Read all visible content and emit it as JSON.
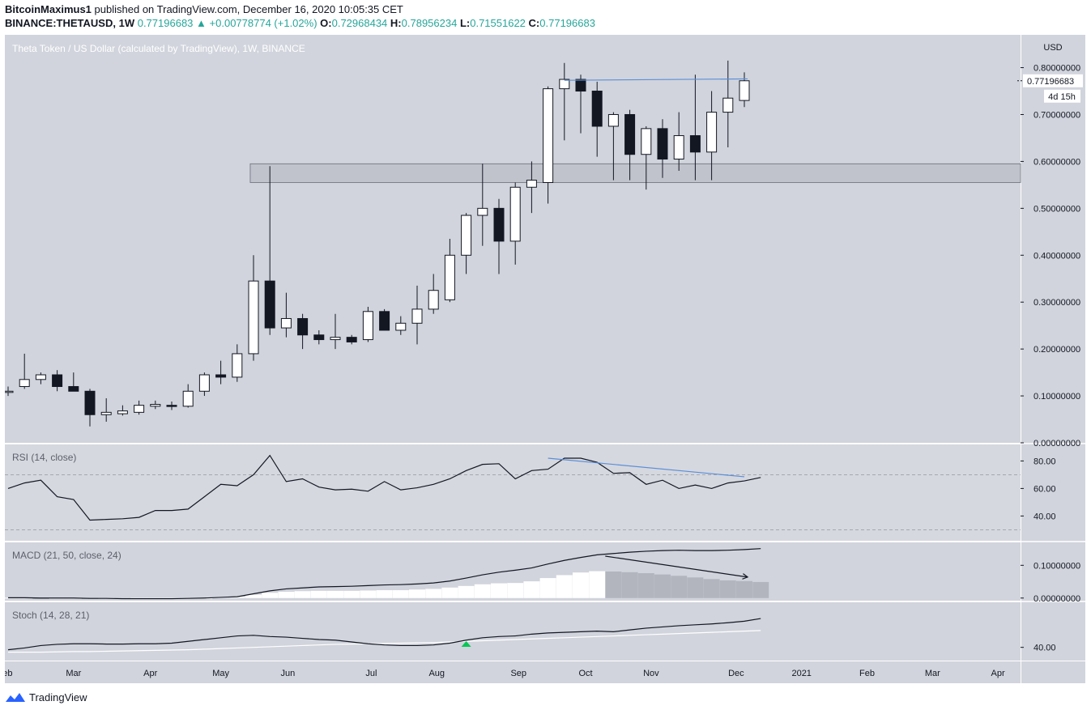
{
  "header": {
    "publisher": "BitcoinMaximus1",
    "published_text": "published on TradingView.com, December 16, 2020 10:05:35 CET",
    "symbol": "BINANCE:THETAUSD, 1W",
    "last_price": "0.77196683",
    "change": "+0.00778774 (+1.02%)",
    "o_label": "O:",
    "o_value": "0.72968434",
    "h_label": "H:",
    "h_value": "0.78956234",
    "l_label": "L:",
    "l_value": "0.71551622",
    "c_label": "C:",
    "c_value": "0.77196683",
    "up_arrow": "▲"
  },
  "footer": {
    "brand": "TradingView"
  },
  "colors": {
    "pane_bg": "#d1d4dc",
    "rsi_bg": "#d6d8df",
    "candle_up": "#ffffff",
    "candle_down": "#131722",
    "annotation": "#5b8fd8",
    "hist_up": "#ffffff",
    "hist_down": "#b2b5be",
    "stoch_signal": "#ffffff",
    "marker": "#00c853"
  },
  "chart_data": [
    {
      "type": "candlestick",
      "title": "Theta Token / US Dollar (calculated by TradingView), 1W, BINANCE",
      "ylabel": "USD",
      "ylim": [
        0,
        0.87
      ],
      "y_ticks": [
        "0.00000000",
        "0.10000000",
        "0.20000000",
        "0.30000000",
        "0.40000000",
        "0.50000000",
        "0.60000000",
        "0.70000000",
        "0.80000000"
      ],
      "last_price_label": "0.77196683",
      "countdown_label": "4d 15h",
      "x_labels": [
        "Feb",
        "Mar",
        "Apr",
        "May",
        "Jun",
        "Jul",
        "Aug",
        "Sep",
        "Oct",
        "Nov",
        "Dec",
        "2021",
        "Feb",
        "Mar",
        "Apr"
      ],
      "x_label_weeks": [
        -0.2,
        4,
        8.7,
        13,
        17.1,
        22.2,
        26.2,
        31.2,
        35.3,
        39.3,
        44.5,
        48.5,
        52.5,
        56.5,
        60.5
      ],
      "candles": [
        [
          0.11,
          0.12,
          0.1,
          0.11
        ],
        [
          0.12,
          0.19,
          0.115,
          0.135
        ],
        [
          0.135,
          0.15,
          0.125,
          0.145
        ],
        [
          0.145,
          0.155,
          0.11,
          0.12
        ],
        [
          0.12,
          0.15,
          0.11,
          0.11
        ],
        [
          0.11,
          0.115,
          0.035,
          0.06
        ],
        [
          0.06,
          0.095,
          0.045,
          0.065
        ],
        [
          0.062,
          0.08,
          0.058,
          0.068
        ],
        [
          0.065,
          0.09,
          0.06,
          0.08
        ],
        [
          0.078,
          0.09,
          0.072,
          0.082
        ],
        [
          0.08,
          0.088,
          0.07,
          0.078
        ],
        [
          0.078,
          0.125,
          0.075,
          0.11
        ],
        [
          0.11,
          0.15,
          0.1,
          0.145
        ],
        [
          0.145,
          0.175,
          0.125,
          0.14
        ],
        [
          0.14,
          0.21,
          0.13,
          0.19
        ],
        [
          0.19,
          0.4,
          0.175,
          0.345
        ],
        [
          0.345,
          0.59,
          0.23,
          0.245
        ],
        [
          0.245,
          0.32,
          0.225,
          0.265
        ],
        [
          0.265,
          0.275,
          0.2,
          0.23
        ],
        [
          0.23,
          0.24,
          0.21,
          0.22
        ],
        [
          0.22,
          0.275,
          0.2,
          0.225
        ],
        [
          0.225,
          0.23,
          0.21,
          0.215
        ],
        [
          0.22,
          0.29,
          0.215,
          0.28
        ],
        [
          0.28,
          0.285,
          0.24,
          0.24
        ],
        [
          0.24,
          0.27,
          0.23,
          0.255
        ],
        [
          0.255,
          0.335,
          0.21,
          0.285
        ],
        [
          0.285,
          0.36,
          0.275,
          0.325
        ],
        [
          0.305,
          0.435,
          0.3,
          0.4
        ],
        [
          0.4,
          0.49,
          0.36,
          0.485
        ],
        [
          0.485,
          0.595,
          0.42,
          0.5
        ],
        [
          0.5,
          0.52,
          0.36,
          0.43
        ],
        [
          0.43,
          0.555,
          0.38,
          0.545
        ],
        [
          0.545,
          0.6,
          0.49,
          0.56
        ],
        [
          0.555,
          0.76,
          0.51,
          0.755
        ],
        [
          0.755,
          0.81,
          0.645,
          0.775
        ],
        [
          0.775,
          0.785,
          0.66,
          0.75
        ],
        [
          0.75,
          0.77,
          0.61,
          0.675
        ],
        [
          0.675,
          0.705,
          0.56,
          0.7
        ],
        [
          0.7,
          0.71,
          0.56,
          0.615
        ],
        [
          0.615,
          0.675,
          0.54,
          0.67
        ],
        [
          0.67,
          0.69,
          0.565,
          0.605
        ],
        [
          0.605,
          0.705,
          0.58,
          0.655
        ],
        [
          0.655,
          0.785,
          0.56,
          0.62
        ],
        [
          0.62,
          0.75,
          0.56,
          0.705
        ],
        [
          0.705,
          0.815,
          0.63,
          0.735
        ],
        [
          0.73,
          0.79,
          0.716,
          0.772
        ]
      ],
      "zone": {
        "from_week": 14.8,
        "low": 0.555,
        "high": 0.595
      },
      "trendline": {
        "from_week": 34,
        "from_price": 0.773,
        "to_week": 45.2,
        "to_price": 0.776
      }
    },
    {
      "type": "line",
      "title": "RSI (14, close)",
      "ylim": [
        22,
        92
      ],
      "y_ticks": [
        "40.00",
        "60.00",
        "80.00"
      ],
      "bands": [
        70,
        30
      ],
      "values": [
        60,
        64,
        66,
        54,
        52,
        37,
        37.5,
        38,
        39,
        44,
        44,
        45,
        54,
        63,
        62,
        70,
        84,
        65,
        67,
        61,
        59,
        59.5,
        58,
        65,
        59,
        60.5,
        63,
        67,
        73,
        77.5,
        78,
        67,
        73,
        74,
        82,
        82,
        79,
        71,
        71.5,
        63,
        66,
        60,
        62.5,
        60,
        64,
        65.5,
        68
      ],
      "divergence": {
        "from_week": 33,
        "from_value": 82,
        "to_week": 45,
        "to_value": 68.5
      }
    },
    {
      "type": "bar+line",
      "title": "MACD (21, 50, close, 24)",
      "ylim": [
        -0.008,
        0.17
      ],
      "y_ticks": [
        "0.00000000",
        "0.10000000"
      ],
      "macd_line": [
        0.001,
        0.001,
        0.0,
        0.0,
        0.0,
        -0.001,
        -0.001,
        -0.002,
        -0.002,
        -0.002,
        -0.002,
        -0.001,
        0.0,
        0.002,
        0.004,
        0.013,
        0.022,
        0.028,
        0.031,
        0.034,
        0.035,
        0.036,
        0.038,
        0.04,
        0.041,
        0.043,
        0.046,
        0.052,
        0.061,
        0.071,
        0.079,
        0.085,
        0.092,
        0.104,
        0.115,
        0.124,
        0.132,
        0.136,
        0.14,
        0.143,
        0.145,
        0.146,
        0.145,
        0.145,
        0.146,
        0.148,
        0.151
      ],
      "histogram": [
        0.001,
        0.001,
        0.0,
        0.0,
        0.0,
        -0.001,
        -0.001,
        -0.002,
        -0.002,
        -0.002,
        -0.002,
        -0.001,
        0.0,
        0.002,
        0.004,
        0.01,
        0.016,
        0.019,
        0.021,
        0.022,
        0.022,
        0.022,
        0.023,
        0.024,
        0.024,
        0.026,
        0.028,
        0.032,
        0.037,
        0.042,
        0.045,
        0.046,
        0.051,
        0.061,
        0.07,
        0.078,
        0.082,
        0.081,
        0.079,
        0.076,
        0.072,
        0.068,
        0.063,
        0.058,
        0.054,
        0.052,
        0.049
      ],
      "arrow": {
        "from_week": 36.5,
        "from_value": 0.128,
        "to_week": 45.2,
        "to_value": 0.064
      }
    },
    {
      "type": "line",
      "title": "Stoch (14, 28, 21)",
      "ylim": [
        18,
        115
      ],
      "y_ticks": [
        "40.00"
      ],
      "k_line": [
        36,
        39,
        43,
        45,
        46,
        46,
        45.5,
        45.5,
        46,
        46,
        47,
        50,
        53,
        56,
        59,
        60,
        58,
        57,
        55,
        53,
        52,
        49,
        46,
        44,
        43,
        43,
        44,
        47,
        52,
        56,
        58,
        59,
        62,
        64,
        65,
        66,
        67,
        66,
        69,
        72,
        74,
        76,
        77.5,
        79,
        81,
        83.5,
        88
      ],
      "d_line": [
        32,
        32,
        32,
        32.5,
        33,
        33,
        33.5,
        34,
        34.5,
        35,
        35.5,
        36,
        37,
        38,
        39,
        40,
        41,
        42,
        43,
        44,
        45,
        45.5,
        46,
        46.5,
        47,
        47.5,
        48,
        49,
        50,
        51,
        52,
        53,
        54,
        55,
        56,
        57,
        58,
        59,
        60,
        61,
        62,
        63,
        64,
        65,
        66,
        67,
        68
      ],
      "cross_marker_week": 28
    }
  ]
}
